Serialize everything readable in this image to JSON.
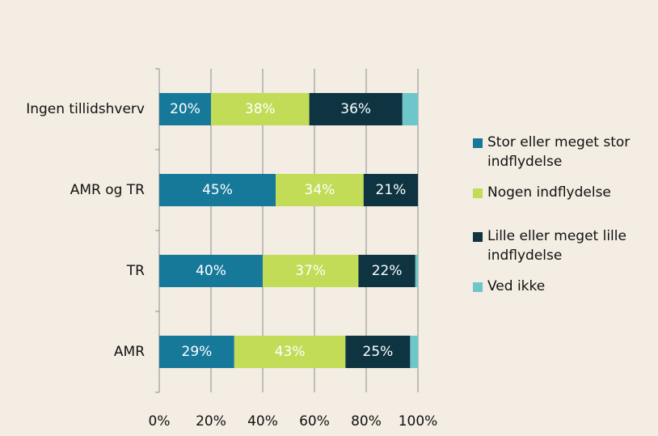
{
  "chart_data": {
    "type": "stacked_barh",
    "categories": [
      "Ingen tillidshverv",
      "AMR og TR",
      "TR",
      "AMR"
    ],
    "series": [
      {
        "name": "Stor eller meget stor indflydelse",
        "color": "#17799a",
        "values": [
          20,
          45,
          40,
          29
        ],
        "value_labels": [
          "20%",
          "45%",
          "40%",
          "29%"
        ]
      },
      {
        "name": "Nogen indflydelse",
        "color": "#c2dc58",
        "values": [
          38,
          34,
          37,
          43
        ],
        "value_labels": [
          "38%",
          "34%",
          "37%",
          "43%"
        ]
      },
      {
        "name": "Lille eller meget lille indflydelse",
        "color": "#0e3441",
        "values": [
          36,
          21,
          22,
          25
        ],
        "value_labels": [
          "36%",
          "21%",
          "22%",
          "25%"
        ]
      },
      {
        "name": "Ved ikke",
        "color": "#6dc6ca",
        "values": [
          6,
          0,
          1,
          3
        ]
      }
    ],
    "xlim": [
      0,
      100
    ],
    "xticks": [
      {
        "value": 0,
        "label": "0%"
      },
      {
        "value": 20,
        "label": "20%"
      },
      {
        "value": 40,
        "label": "40%"
      },
      {
        "value": 60,
        "label": "60%"
      },
      {
        "value": 80,
        "label": "80%"
      },
      {
        "value": 100,
        "label": "100%"
      }
    ],
    "grid": true,
    "legend": "right"
  }
}
